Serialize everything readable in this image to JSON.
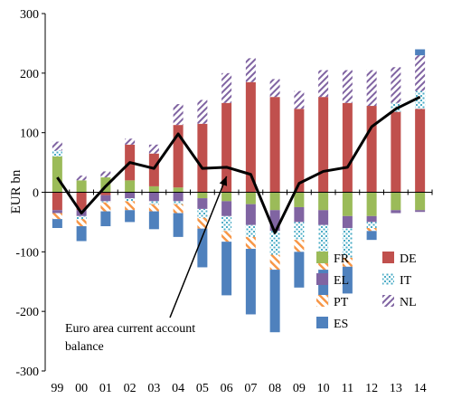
{
  "chart_data": {
    "type": "bar",
    "subtype": "stacked-bar-with-line",
    "title": "",
    "xlabel": "",
    "ylabel": "EUR bn",
    "ylim": [
      -300,
      300
    ],
    "yticks": [
      -300,
      -200,
      -100,
      0,
      100,
      200,
      300
    ],
    "categories": [
      "99",
      "00",
      "01",
      "02",
      "03",
      "04",
      "05",
      "06",
      "07",
      "08",
      "09",
      "10",
      "11",
      "12",
      "13",
      "14"
    ],
    "grid": false,
    "legend_position": "bottom-right",
    "series": [
      {
        "key": "FR",
        "name": "FR",
        "color": "#9bbb59",
        "pattern": "solid",
        "values": [
          60,
          20,
          25,
          20,
          10,
          8,
          -10,
          -15,
          -20,
          -30,
          -25,
          -30,
          -40,
          -40,
          -30,
          -30
        ]
      },
      {
        "key": "DE",
        "name": "DE",
        "color": "#c0504d",
        "pattern": "solid",
        "values": [
          -30,
          -30,
          -5,
          60,
          55,
          105,
          115,
          150,
          185,
          160,
          140,
          160,
          150,
          145,
          135,
          140
        ]
      },
      {
        "key": "EL",
        "name": "EL",
        "color": "#8064a2",
        "pattern": "solid",
        "values": [
          -5,
          -10,
          -10,
          -10,
          -15,
          -15,
          -18,
          -25,
          -35,
          -35,
          -25,
          -25,
          -20,
          -10,
          -5,
          -3
        ]
      },
      {
        "key": "IT",
        "name": "IT",
        "color": "#4bacc6",
        "pattern": "dots",
        "values": [
          10,
          -5,
          -2,
          -5,
          -5,
          -5,
          -15,
          -25,
          -20,
          -40,
          -30,
          -55,
          -50,
          -10,
          15,
          30
        ]
      },
      {
        "key": "PT",
        "name": "PT",
        "color": "#f79646",
        "pattern": "diag",
        "values": [
          -10,
          -12,
          -15,
          -15,
          -12,
          -15,
          -18,
          -18,
          -20,
          -25,
          -20,
          -20,
          -15,
          -5,
          0,
          0
        ]
      },
      {
        "key": "NL",
        "name": "NL",
        "color": "#8064a2",
        "pattern": "stripe",
        "values": [
          15,
          8,
          10,
          10,
          15,
          35,
          40,
          50,
          40,
          30,
          30,
          45,
          55,
          60,
          60,
          60
        ]
      },
      {
        "key": "ES",
        "name": "ES",
        "color": "#4f81bd",
        "pattern": "solid",
        "values": [
          -15,
          -25,
          -25,
          -20,
          -30,
          -40,
          -65,
          -90,
          -110,
          -105,
          -60,
          -60,
          -45,
          -15,
          0,
          10
        ]
      }
    ],
    "line": {
      "name": "Euro area current account balance",
      "color": "#000000",
      "values": [
        25,
        -35,
        10,
        50,
        40,
        98,
        40,
        42,
        30,
        -68,
        15,
        35,
        42,
        110,
        140,
        160
      ]
    },
    "annotation": {
      "lines": [
        "Euro area current account",
        "balance"
      ],
      "points_to_category": "06"
    }
  }
}
